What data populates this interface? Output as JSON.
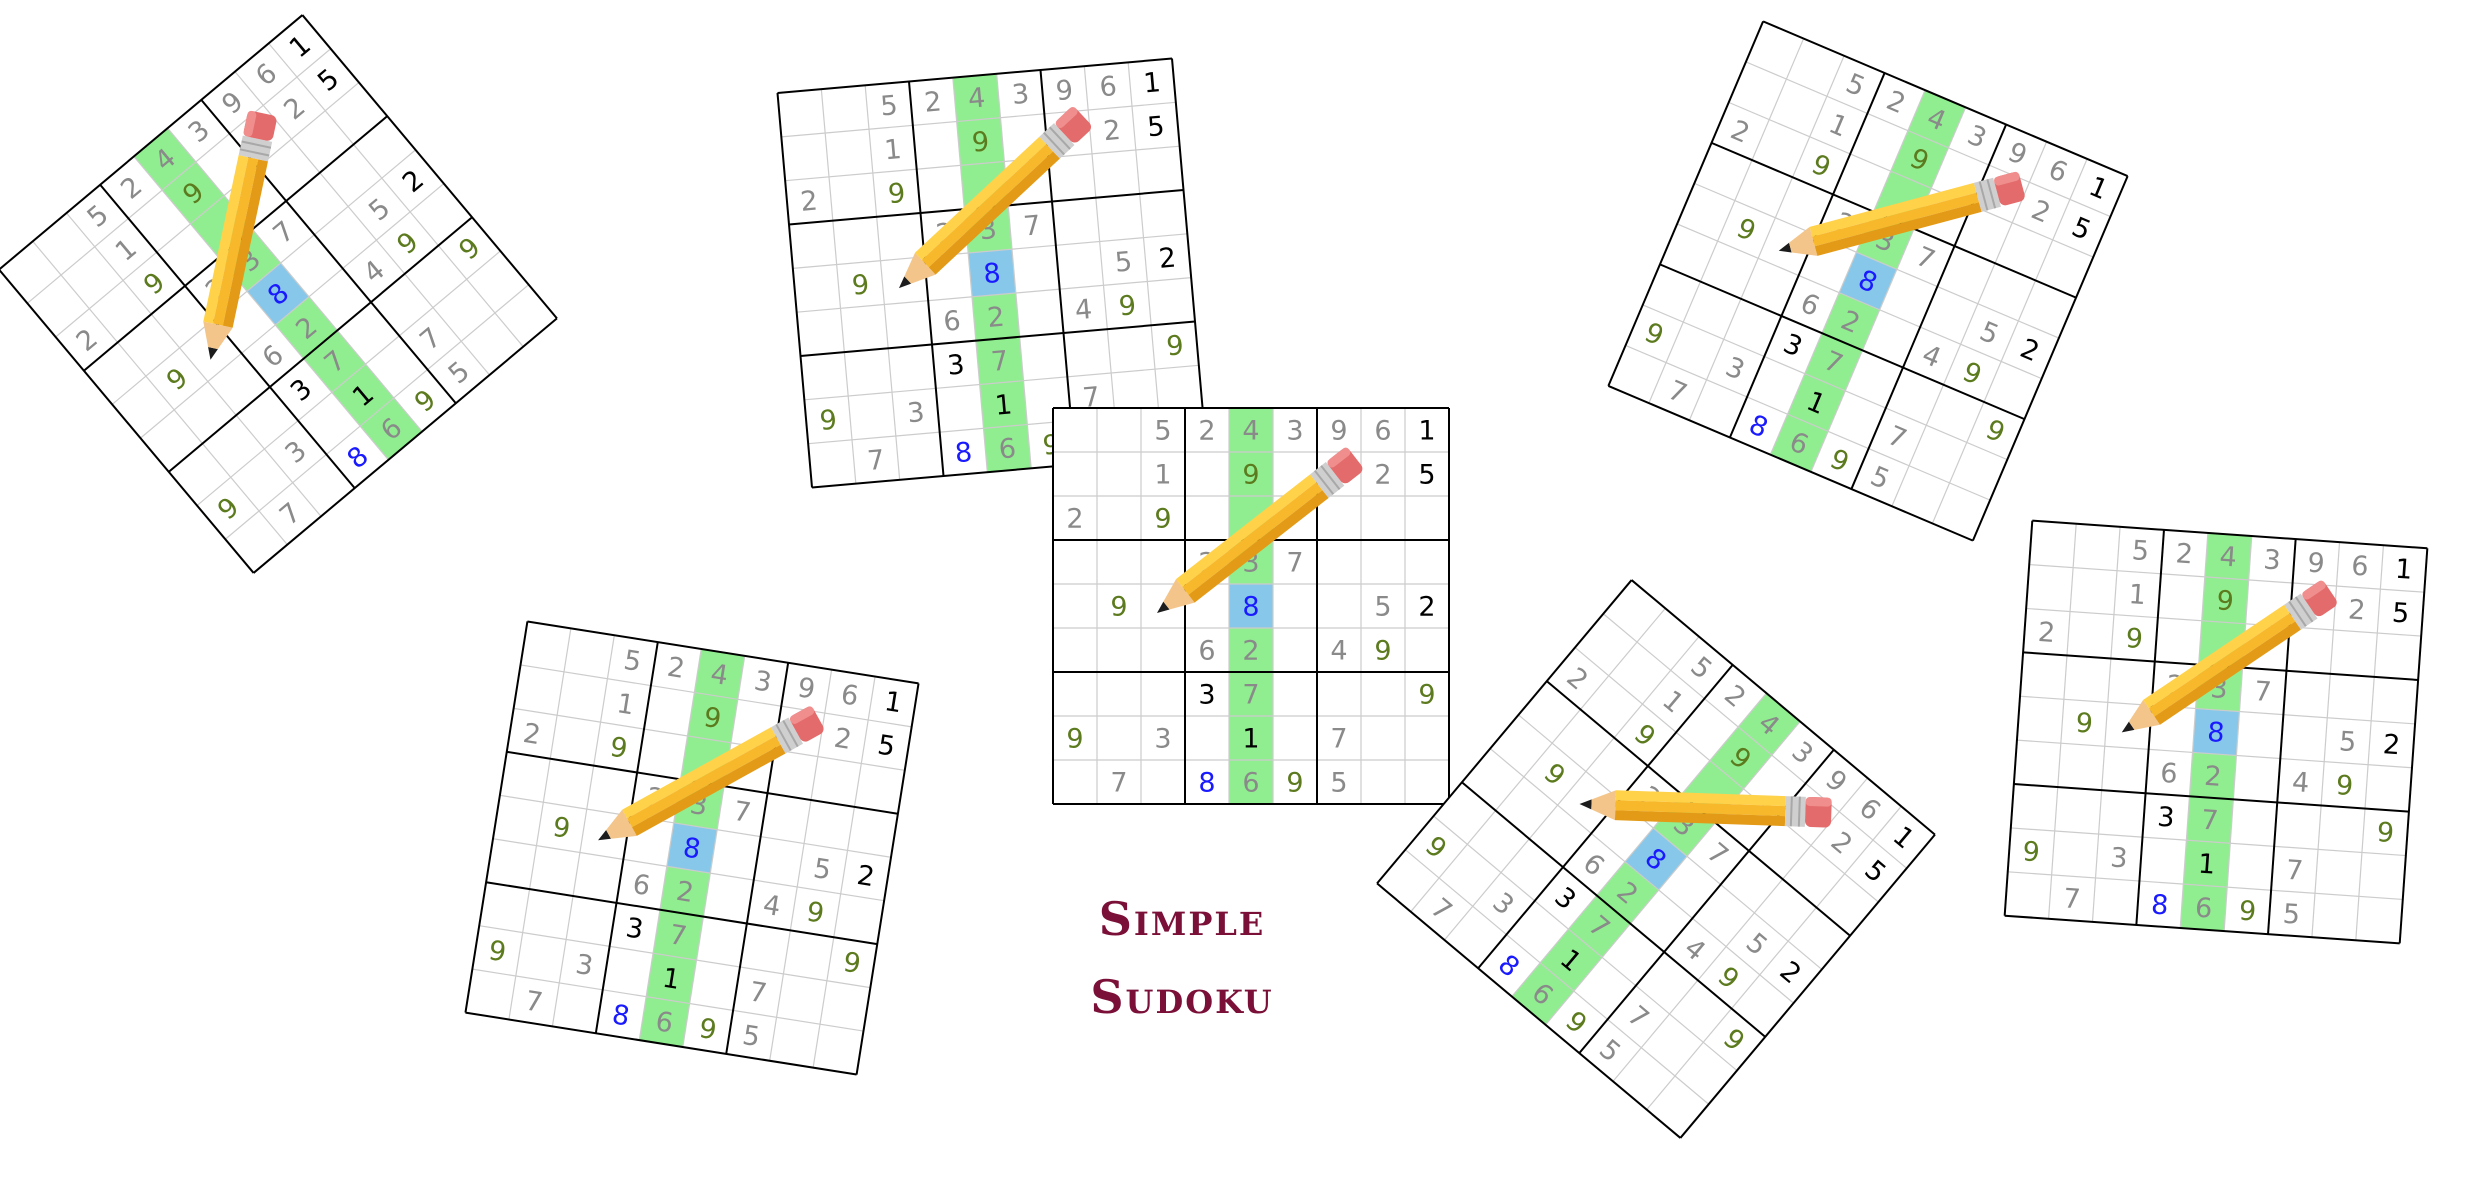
{
  "title": {
    "line1": "Simple",
    "line2": "Sudoku"
  },
  "colors": {
    "grid_line": "#cccccc",
    "box_line": "#000000",
    "given_digit": "#000000",
    "gray_digit": "#8a8a8a",
    "olive_digit": "#5c7a1e",
    "highlight_digit": "#1a1aff",
    "column_highlight": "#90ee90",
    "cell_highlight": "#87c8ea",
    "title": "#7a1038"
  },
  "icons": [
    "pencil-icon"
  ],
  "highlight": {
    "column": 4,
    "cell": [
      4,
      4
    ]
  },
  "cells": [
    {
      "r": 0,
      "c": 2,
      "v": "5",
      "s": "gray"
    },
    {
      "r": 0,
      "c": 3,
      "v": "2",
      "s": "gray"
    },
    {
      "r": 0,
      "c": 4,
      "v": "4",
      "s": "gray"
    },
    {
      "r": 0,
      "c": 5,
      "v": "3",
      "s": "gray"
    },
    {
      "r": 0,
      "c": 6,
      "v": "9",
      "s": "gray"
    },
    {
      "r": 0,
      "c": 7,
      "v": "6",
      "s": "gray"
    },
    {
      "r": 0,
      "c": 8,
      "v": "1",
      "s": "given"
    },
    {
      "r": 1,
      "c": 2,
      "v": "1",
      "s": "gray"
    },
    {
      "r": 1,
      "c": 4,
      "v": "9",
      "s": "olive"
    },
    {
      "r": 1,
      "c": 7,
      "v": "2",
      "s": "gray"
    },
    {
      "r": 1,
      "c": 8,
      "v": "5",
      "s": "given"
    },
    {
      "r": 2,
      "c": 0,
      "v": "2",
      "s": "gray"
    },
    {
      "r": 2,
      "c": 2,
      "v": "9",
      "s": "olive"
    },
    {
      "r": 3,
      "c": 3,
      "v": "2",
      "s": "gray"
    },
    {
      "r": 3,
      "c": 4,
      "v": "3",
      "s": "gray"
    },
    {
      "r": 3,
      "c": 5,
      "v": "7",
      "s": "gray"
    },
    {
      "r": 4,
      "c": 1,
      "v": "9",
      "s": "olive"
    },
    {
      "r": 4,
      "c": 4,
      "v": "8",
      "s": "highlight"
    },
    {
      "r": 4,
      "c": 7,
      "v": "5",
      "s": "gray"
    },
    {
      "r": 4,
      "c": 8,
      "v": "2",
      "s": "given"
    },
    {
      "r": 5,
      "c": 3,
      "v": "6",
      "s": "gray"
    },
    {
      "r": 5,
      "c": 4,
      "v": "2",
      "s": "gray"
    },
    {
      "r": 5,
      "c": 6,
      "v": "4",
      "s": "gray"
    },
    {
      "r": 5,
      "c": 7,
      "v": "9",
      "s": "olive"
    },
    {
      "r": 6,
      "c": 3,
      "v": "3",
      "s": "given"
    },
    {
      "r": 6,
      "c": 4,
      "v": "7",
      "s": "gray"
    },
    {
      "r": 6,
      "c": 8,
      "v": "9",
      "s": "olive"
    },
    {
      "r": 7,
      "c": 0,
      "v": "9",
      "s": "olive"
    },
    {
      "r": 7,
      "c": 2,
      "v": "3",
      "s": "gray"
    },
    {
      "r": 7,
      "c": 4,
      "v": "1",
      "s": "given"
    },
    {
      "r": 7,
      "c": 6,
      "v": "7",
      "s": "gray"
    },
    {
      "r": 8,
      "c": 1,
      "v": "7",
      "s": "gray"
    },
    {
      "r": 8,
      "c": 3,
      "v": "8",
      "s": "highlight"
    },
    {
      "r": 8,
      "c": 4,
      "v": "6",
      "s": "gray"
    },
    {
      "r": 8,
      "c": 5,
      "v": "9",
      "s": "olive"
    },
    {
      "r": 8,
      "c": 6,
      "v": "5",
      "s": "gray"
    }
  ],
  "boards": [
    {
      "name": "sudoku-board-top-left",
      "rotation": -40
    },
    {
      "name": "sudoku-board-top-center",
      "rotation": -5
    },
    {
      "name": "sudoku-board-center",
      "rotation": 0
    },
    {
      "name": "sudoku-board-top-right",
      "rotation": 23
    },
    {
      "name": "sudoku-board-bottom-left",
      "rotation": 9
    },
    {
      "name": "sudoku-board-bottom-center-right",
      "rotation": 40
    },
    {
      "name": "sudoku-board-right",
      "rotation": 4
    }
  ]
}
